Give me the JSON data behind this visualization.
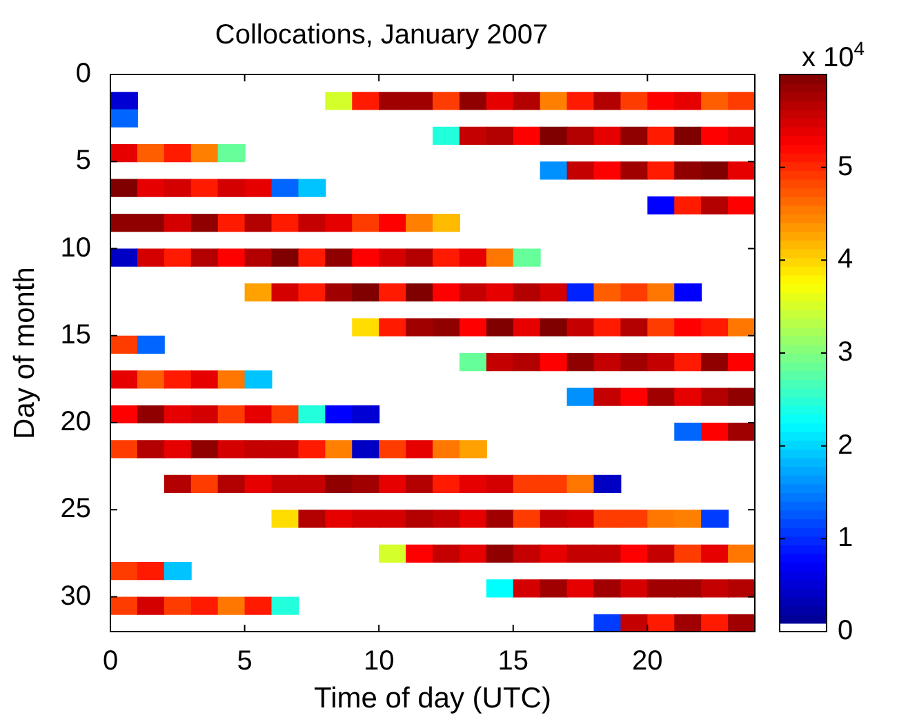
{
  "chart_data": {
    "type": "scatter",
    "title": "Collocations, January 2007",
    "xlabel": "Time of day (UTC)",
    "ylabel": "Day of month",
    "clabel": "x 10$^{4}$",
    "marker": "square",
    "xlim": [
      0,
      24
    ],
    "xticks": [
      0,
      5,
      10,
      15,
      20
    ],
    "ylim": [
      32,
      0
    ],
    "yticks": [
      0,
      5,
      10,
      15,
      20,
      25,
      30
    ],
    "clim": [
      0,
      6
    ],
    "cticks": [
      0,
      1,
      2,
      3,
      4,
      5
    ],
    "series": [
      {
        "x": [
          0.5,
          8.5,
          9.5,
          10.5,
          11.5,
          12.5,
          13.5,
          14.5,
          15.5,
          16.5,
          17.5,
          18.5,
          19.5,
          20.5,
          21.5,
          22.5,
          23.5
        ],
        "values": [
          1.5,
          1.5,
          1.5,
          1.5,
          1.5,
          1.5,
          1.5,
          1.5,
          1.5,
          1.5,
          1.5,
          1.5,
          1.5,
          1.5,
          1.5,
          1.5,
          1.5
        ],
        "cvalues": [
          0.5,
          3.5,
          5.1,
          5.8,
          5.8,
          4.9,
          5.9,
          5.4,
          5.7,
          4.5,
          5.1,
          5.7,
          4.9,
          5.25,
          5.4,
          4.7,
          4.9
        ],
        "colors": [
          "#0000d4",
          "#d4ff2b",
          "#ff1a00",
          "#a10000",
          "#a10000",
          "#ff3c00",
          "#910000",
          "#e60000",
          "#b30000",
          "#ff8000",
          "#ff1a00",
          "#b30000",
          "#ff3c00",
          "#ff0000",
          "#e60000",
          "#ff5e00",
          "#ff3c00"
        ]
      },
      {
        "x": [
          0.5
        ],
        "values": [
          2.5
        ],
        "cvalues": [
          1.35
        ],
        "colors": [
          "#0066ff"
        ]
      },
      {
        "x": [
          12.5,
          13.5,
          14.5,
          15.5,
          16.5,
          17.5,
          18.5,
          19.5,
          20.5,
          21.5,
          22.5,
          23.5
        ],
        "values": [
          3.5,
          3.5,
          3.5,
          3.5,
          3.5,
          3.5,
          3.5,
          3.5,
          3.5,
          3.5,
          3.5,
          3.5
        ],
        "cvalues": [
          2.45,
          5.6,
          5.7,
          5.25,
          6,
          5.7,
          5.4,
          5.9,
          5.1,
          6,
          5.25,
          5.4
        ],
        "colors": [
          "#22ffdd",
          "#c40000",
          "#b30000",
          "#ff0000",
          "#800000",
          "#b30000",
          "#e60000",
          "#910000",
          "#ff1a00",
          "#800000",
          "#ff0000",
          "#e60000"
        ]
      },
      {
        "x": [
          0.5,
          1.5,
          2.5,
          3.5,
          4.5
        ],
        "values": [
          4.5,
          4.5,
          4.5,
          4.5,
          4.5
        ],
        "cvalues": [
          5.4,
          4.7,
          5.1,
          4.5,
          2.85
        ],
        "colors": [
          "#e60000",
          "#ff5e00",
          "#ff1a00",
          "#ff8000",
          "#66ff99"
        ]
      },
      {
        "x": [
          16.5,
          17.5,
          18.5,
          19.5,
          20.5,
          21.5,
          22.5,
          23.5
        ],
        "values": [
          5.5,
          5.5,
          5.5,
          5.5,
          5.5,
          5.5,
          5.5,
          5.5
        ],
        "cvalues": [
          1.6,
          5.6,
          5.25,
          5.8,
          5.1,
          5.9,
          6,
          5.4
        ],
        "colors": [
          "#0091ff",
          "#c40000",
          "#ff0000",
          "#a10000",
          "#ff1a00",
          "#910000",
          "#800000",
          "#e60000"
        ]
      },
      {
        "x": [
          0.5,
          1.5,
          2.5,
          3.5,
          4.5,
          5.5,
          6.5,
          7.5
        ],
        "values": [
          6.5,
          6.5,
          6.5,
          6.5,
          6.5,
          6.5,
          6.5,
          6.5
        ],
        "cvalues": [
          6,
          5.4,
          5.5,
          5.1,
          5.5,
          5.4,
          1.35,
          1.9
        ],
        "colors": [
          "#800000",
          "#e60000",
          "#d40000",
          "#ff1a00",
          "#d40000",
          "#e60000",
          "#0066ff",
          "#00c4ff"
        ]
      },
      {
        "x": [
          20.5,
          21.5,
          22.5,
          23.5
        ],
        "values": [
          7.5,
          7.5,
          7.5,
          7.5
        ],
        "cvalues": [
          0.75,
          5.1,
          5.7,
          5.25
        ],
        "colors": [
          "#0000ff",
          "#ff1a00",
          "#b30000",
          "#ff0000"
        ]
      },
      {
        "x": [
          0.5,
          1.5,
          2.5,
          3.5,
          4.5,
          5.5,
          6.5,
          7.5,
          8.5,
          9.5,
          10.5,
          11.5,
          12.5
        ],
        "values": [
          8.5,
          8.5,
          8.5,
          8.5,
          8.5,
          8.5,
          8.5,
          8.5,
          8.5,
          8.5,
          8.5,
          8.5,
          8.5
        ],
        "cvalues": [
          5.9,
          5.9,
          5.5,
          5.9,
          5.1,
          5.7,
          5.1,
          5.6,
          5.4,
          4.9,
          5.25,
          4.5,
          4.15
        ],
        "colors": [
          "#910000",
          "#910000",
          "#d40000",
          "#910000",
          "#ff1a00",
          "#b30000",
          "#ff1a00",
          "#c40000",
          "#e60000",
          "#ff3c00",
          "#ff0000",
          "#ff8000",
          "#ffbb00"
        ]
      },
      {
        "x": [
          0.5,
          1.5,
          2.5,
          3.5,
          4.5,
          5.5,
          6.5,
          7.5,
          8.5,
          9.5,
          10.5,
          11.5,
          12.5,
          13.5,
          14.5,
          15.5
        ],
        "values": [
          10.5,
          10.5,
          10.5,
          10.5,
          10.5,
          10.5,
          10.5,
          10.5,
          10.5,
          10.5,
          10.5,
          10.5,
          10.5,
          10.5,
          10.5,
          10.5
        ],
        "cvalues": [
          0.4,
          5.5,
          5.1,
          5.7,
          5.25,
          5.7,
          6,
          5.1,
          5.9,
          5.25,
          5.5,
          5.7,
          5.1,
          5.4,
          4.55,
          2.85
        ],
        "colors": [
          "#0000c4",
          "#d40000",
          "#ff1a00",
          "#b30000",
          "#ff0000",
          "#b30000",
          "#800000",
          "#ff1a00",
          "#910000",
          "#ff0000",
          "#d40000",
          "#b30000",
          "#ff1a00",
          "#e60000",
          "#ff7700",
          "#66ff99"
        ]
      },
      {
        "x": [
          5.5,
          6.5,
          7.5,
          8.5,
          9.5,
          10.5,
          11.5,
          12.5,
          13.5,
          14.5,
          15.5,
          16.5,
          17.5,
          18.5,
          19.5,
          20.5,
          21.5
        ],
        "values": [
          12.5,
          12.5,
          12.5,
          12.5,
          12.5,
          12.5,
          12.5,
          12.5,
          12.5,
          12.5,
          12.5,
          12.5,
          12.5,
          12.5,
          12.5,
          12.5,
          12.5
        ],
        "cvalues": [
          4.3,
          5.5,
          5.1,
          5.8,
          6,
          5.1,
          6,
          5.25,
          5.6,
          5.4,
          5.7,
          5.5,
          0.95,
          4.7,
          4.9,
          4.55,
          0.75
        ],
        "colors": [
          "#ffa100",
          "#d40000",
          "#ff1a00",
          "#a10000",
          "#800000",
          "#ff1a00",
          "#800000",
          "#ff0000",
          "#c40000",
          "#e60000",
          "#b30000",
          "#d40000",
          "#0022ff",
          "#ff5e00",
          "#ff3c00",
          "#ff7700",
          "#0000ff"
        ]
      },
      {
        "x": [
          9.5,
          10.5,
          11.5,
          12.5,
          13.5,
          14.5,
          15.5,
          16.5,
          17.5,
          18.5,
          19.5,
          20.5,
          21.5,
          22.5,
          23.5
        ],
        "values": [
          14.5,
          14.5,
          14.5,
          14.5,
          14.5,
          14.5,
          14.5,
          14.5,
          14.5,
          14.5,
          14.5,
          14.5,
          14.5,
          14.5,
          14.5
        ],
        "cvalues": [
          3.95,
          5.1,
          5.8,
          5.9,
          5.25,
          6,
          5.4,
          6,
          5.6,
          5.1,
          5.7,
          4.9,
          5.25,
          5.1,
          4.55
        ],
        "colors": [
          "#ffdd00",
          "#ff1a00",
          "#a10000",
          "#910000",
          "#ff0000",
          "#800000",
          "#e60000",
          "#800000",
          "#c40000",
          "#ff1a00",
          "#b30000",
          "#ff3c00",
          "#ff0000",
          "#ff1a00",
          "#ff7700"
        ]
      },
      {
        "x": [
          0.5,
          1.5
        ],
        "values": [
          15.5,
          15.5
        ],
        "cvalues": [
          4.9,
          1.35
        ],
        "colors": [
          "#ff3c00",
          "#0066ff"
        ]
      },
      {
        "x": [
          13.5,
          14.5,
          15.5,
          16.5,
          17.5,
          18.5,
          19.5,
          20.5,
          21.5,
          22.5,
          23.5
        ],
        "values": [
          16.5,
          16.5,
          16.5,
          16.5,
          16.5,
          16.5,
          16.5,
          16.5,
          16.5,
          16.5,
          16.5
        ],
        "cvalues": [
          2.85,
          5.6,
          5.7,
          5.25,
          5.9,
          5.6,
          5.8,
          5.6,
          5.1,
          5.9,
          5.25
        ],
        "colors": [
          "#66ff99",
          "#c40000",
          "#b30000",
          "#ff0000",
          "#910000",
          "#c40000",
          "#a10000",
          "#c40000",
          "#ff1a00",
          "#910000",
          "#ff0000"
        ]
      },
      {
        "x": [
          0.5,
          1.5,
          2.5,
          3.5,
          4.5,
          5.5
        ],
        "values": [
          17.5,
          17.5,
          17.5,
          17.5,
          17.5,
          17.5
        ],
        "cvalues": [
          5.4,
          4.7,
          5.1,
          5.4,
          4.55,
          1.9
        ],
        "colors": [
          "#e60000",
          "#ff5e00",
          "#ff1a00",
          "#e60000",
          "#ff7700",
          "#00c4ff"
        ]
      },
      {
        "x": [
          17.5,
          18.5,
          19.5,
          20.5,
          21.5,
          22.5,
          23.5
        ],
        "values": [
          18.5,
          18.5,
          18.5,
          18.5,
          18.5,
          18.5,
          18.5
        ],
        "cvalues": [
          1.6,
          5.6,
          5.25,
          5.8,
          5.4,
          5.7,
          5.9
        ],
        "colors": [
          "#0091ff",
          "#c40000",
          "#ff0000",
          "#a10000",
          "#e60000",
          "#b30000",
          "#910000"
        ]
      },
      {
        "x": [
          0.5,
          1.5,
          2.5,
          3.5,
          4.5,
          5.5,
          6.5,
          7.5,
          8.5,
          9.5
        ],
        "values": [
          19.5,
          19.5,
          19.5,
          19.5,
          19.5,
          19.5,
          19.5,
          19.5,
          19.5,
          19.5
        ],
        "cvalues": [
          5.25,
          5.9,
          5.4,
          5.5,
          4.9,
          5.4,
          4.9,
          2.45,
          0.75,
          0.5
        ],
        "colors": [
          "#ff0000",
          "#910000",
          "#e60000",
          "#d40000",
          "#ff3c00",
          "#e60000",
          "#ff3c00",
          "#22ffdd",
          "#0000ff",
          "#0000d4"
        ]
      },
      {
        "x": [
          21.5,
          22.5,
          23.5
        ],
        "values": [
          20.5,
          20.5,
          20.5
        ],
        "cvalues": [
          1.35,
          5.25,
          5.8
        ],
        "colors": [
          "#0066ff",
          "#ff0000",
          "#a10000"
        ]
      },
      {
        "x": [
          0.5,
          1.5,
          2.5,
          3.5,
          4.5,
          5.5,
          6.5,
          7.5,
          8.5,
          9.5,
          10.5,
          11.5,
          12.5,
          13.5
        ],
        "values": [
          21.5,
          21.5,
          21.5,
          21.5,
          21.5,
          21.5,
          21.5,
          21.5,
          21.5,
          21.5,
          21.5,
          21.5,
          21.5,
          21.5
        ],
        "cvalues": [
          4.9,
          5.7,
          5.4,
          5.9,
          5.5,
          5.6,
          5.6,
          5.1,
          4.5,
          0.4,
          4.9,
          5.4,
          4.55,
          4.3
        ],
        "colors": [
          "#ff3c00",
          "#b30000",
          "#e60000",
          "#910000",
          "#d40000",
          "#c40000",
          "#c40000",
          "#ff1a00",
          "#ff8000",
          "#0000c4",
          "#ff3c00",
          "#e60000",
          "#ff7700",
          "#ffa100"
        ]
      },
      {
        "x": [
          2.5,
          3.5,
          4.5,
          5.5,
          6.5,
          7.5,
          8.5,
          9.5,
          10.5,
          11.5,
          12.5,
          13.5,
          14.5,
          15.5,
          16.5,
          17.5,
          18.5
        ],
        "values": [
          23.5,
          23.5,
          23.5,
          23.5,
          23.5,
          23.5,
          23.5,
          23.5,
          23.5,
          23.5,
          23.5,
          23.5,
          23.5,
          23.5,
          23.5,
          23.5,
          23.5
        ],
        "cvalues": [
          5.7,
          4.9,
          5.7,
          5.4,
          5.6,
          5.6,
          5.9,
          5.8,
          5.4,
          5.7,
          5.1,
          5.4,
          5.5,
          4.9,
          4.9,
          4.55,
          0.4
        ],
        "colors": [
          "#b30000",
          "#ff3c00",
          "#b30000",
          "#e60000",
          "#c40000",
          "#c40000",
          "#910000",
          "#a10000",
          "#e60000",
          "#b30000",
          "#ff1a00",
          "#e60000",
          "#d40000",
          "#ff3c00",
          "#ff3c00",
          "#ff7700",
          "#0000c4"
        ]
      },
      {
        "x": [
          6.5,
          7.5,
          8.5,
          9.5,
          10.5,
          11.5,
          12.5,
          13.5,
          14.5,
          15.5,
          16.5,
          17.5,
          18.5,
          19.5,
          20.5,
          21.5,
          22.5
        ],
        "values": [
          25.5,
          25.5,
          25.5,
          25.5,
          25.5,
          25.5,
          25.5,
          25.5,
          25.5,
          25.5,
          25.5,
          25.5,
          25.5,
          25.5,
          25.5,
          25.5,
          25.5
        ],
        "cvalues": [
          3.95,
          5.7,
          5.4,
          5.5,
          5.5,
          5.7,
          5.6,
          5.4,
          5.8,
          4.9,
          5.6,
          5.5,
          4.9,
          4.9,
          4.55,
          4.5,
          1.1
        ],
        "colors": [
          "#ffdd00",
          "#b30000",
          "#e60000",
          "#d40000",
          "#d40000",
          "#b30000",
          "#c40000",
          "#e60000",
          "#a10000",
          "#ff3c00",
          "#c40000",
          "#d40000",
          "#ff3c00",
          "#ff3c00",
          "#ff7700",
          "#ff8000",
          "#003cff"
        ]
      },
      {
        "x": [
          10.5,
          11.5,
          12.5,
          13.5,
          14.5,
          15.5,
          16.5,
          17.5,
          18.5,
          19.5,
          20.5,
          21.5,
          22.5,
          23.5
        ],
        "values": [
          27.5,
          27.5,
          27.5,
          27.5,
          27.5,
          27.5,
          27.5,
          27.5,
          27.5,
          27.5,
          27.5,
          27.5,
          27.5,
          27.5
        ],
        "cvalues": [
          3.5,
          5.25,
          5.6,
          5.4,
          5.9,
          5.6,
          5.4,
          5.6,
          5.6,
          5.25,
          5.6,
          4.9,
          5.4,
          4.55
        ],
        "colors": [
          "#d4ff2b",
          "#ff0000",
          "#c40000",
          "#e60000",
          "#910000",
          "#c40000",
          "#e60000",
          "#c40000",
          "#c40000",
          "#ff0000",
          "#c40000",
          "#ff3c00",
          "#e60000",
          "#ff7700"
        ]
      },
      {
        "x": [
          0.5,
          1.5,
          2.5
        ],
        "values": [
          28.5,
          28.5,
          28.5
        ],
        "cvalues": [
          4.9,
          5.1,
          1.9
        ],
        "colors": [
          "#ff3c00",
          "#ff1a00",
          "#00c4ff"
        ]
      },
      {
        "x": [
          14.5,
          15.5,
          16.5,
          17.5,
          18.5,
          19.5,
          20.5,
          21.5,
          22.5,
          23.5
        ],
        "values": [
          29.5,
          29.5,
          29.5,
          29.5,
          29.5,
          29.5,
          29.5,
          29.5,
          29.5,
          29.5
        ],
        "cvalues": [
          2.25,
          5.5,
          5.8,
          5.4,
          5.8,
          5.5,
          5.8,
          5.8,
          5.6,
          5.7
        ],
        "colors": [
          "#00ffff",
          "#d40000",
          "#a10000",
          "#e60000",
          "#a10000",
          "#d40000",
          "#a10000",
          "#a10000",
          "#c40000",
          "#b30000"
        ]
      },
      {
        "x": [
          0.5,
          1.5,
          2.5,
          3.5,
          4.5,
          5.5,
          6.5
        ],
        "values": [
          30.5,
          30.5,
          30.5,
          30.5,
          30.5,
          30.5,
          30.5
        ],
        "cvalues": [
          4.9,
          5.5,
          4.9,
          5.1,
          4.55,
          5.1,
          2.45
        ],
        "colors": [
          "#ff3c00",
          "#d40000",
          "#ff3c00",
          "#ff1a00",
          "#ff7700",
          "#ff1a00",
          "#22ffdd"
        ]
      },
      {
        "x": [
          18.5,
          19.5,
          20.5,
          21.5,
          22.5,
          23.5
        ],
        "values": [
          31.5,
          31.5,
          31.5,
          31.5,
          31.5,
          31.5
        ],
        "cvalues": [
          1.1,
          5.6,
          5.1,
          5.8,
          5.1,
          5.8
        ],
        "colors": [
          "#003cff",
          "#c40000",
          "#ff1a00",
          "#a10000",
          "#ff1a00",
          "#a10000"
        ]
      }
    ]
  }
}
